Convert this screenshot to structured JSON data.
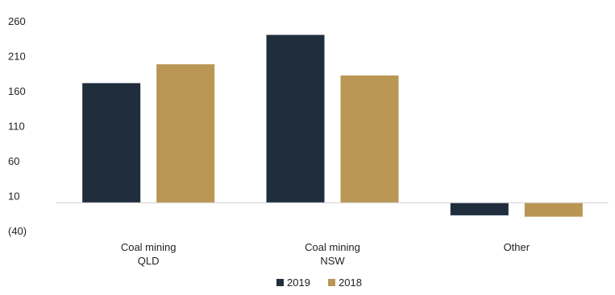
{
  "chart_data": {
    "type": "bar",
    "title": "",
    "xlabel": "",
    "ylabel": "",
    "categories": [
      [
        "Coal mining",
        "QLD"
      ],
      [
        "Coal mining",
        "NSW"
      ],
      [
        "Other"
      ]
    ],
    "series": [
      {
        "name": "2019",
        "color": "#1f2d3d",
        "values": [
          171,
          240,
          -18
        ]
      },
      {
        "name": "2018",
        "color": "#b99654",
        "values": [
          198,
          182,
          -20
        ]
      }
    ],
    "yticks": [
      260,
      210,
      160,
      110,
      60,
      10,
      -40
    ],
    "ytick_labels": [
      "260",
      "210",
      "160",
      "110",
      "60",
      "10",
      "(40)"
    ],
    "ylim": [
      -40,
      260
    ],
    "grid": false,
    "baseline": 0,
    "legend": "bottom"
  }
}
